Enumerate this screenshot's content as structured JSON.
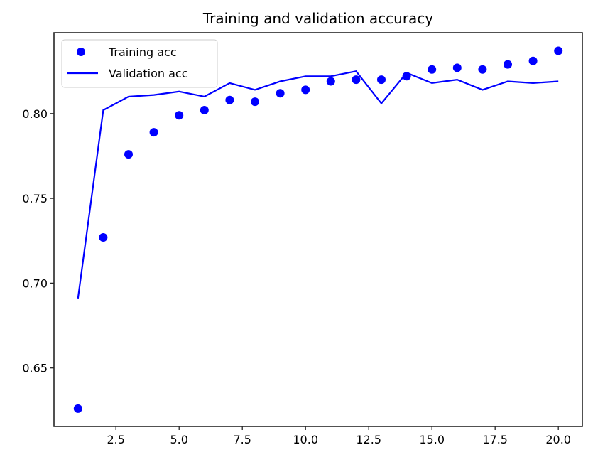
{
  "chart_data": {
    "type": "line",
    "title": "Training and validation accuracy",
    "xlabel": "",
    "ylabel": "",
    "x": [
      1,
      2,
      3,
      4,
      5,
      6,
      7,
      8,
      9,
      10,
      11,
      12,
      13,
      14,
      15,
      16,
      17,
      18,
      19,
      20
    ],
    "series": [
      {
        "name": "Training acc",
        "style": "markers",
        "color": "#0000ff",
        "values": [
          0.626,
          0.727,
          0.776,
          0.789,
          0.799,
          0.802,
          0.808,
          0.807,
          0.812,
          0.814,
          0.819,
          0.82,
          0.82,
          0.822,
          0.826,
          0.827,
          0.826,
          0.829,
          0.831,
          0.837
        ]
      },
      {
        "name": "Validation acc",
        "style": "line",
        "color": "#0000ff",
        "values": [
          0.691,
          0.802,
          0.81,
          0.811,
          0.813,
          0.81,
          0.818,
          0.814,
          0.819,
          0.822,
          0.822,
          0.825,
          0.806,
          0.824,
          0.818,
          0.82,
          0.814,
          0.819,
          0.818,
          0.819
        ]
      }
    ],
    "xticks": [
      2.5,
      5.0,
      7.5,
      10.0,
      12.5,
      15.0,
      17.5,
      20.0
    ],
    "xtick_labels": [
      "2.5",
      "5.0",
      "7.5",
      "10.0",
      "12.5",
      "15.0",
      "17.5",
      "20.0"
    ],
    "yticks": [
      0.65,
      0.7,
      0.75,
      0.8
    ],
    "ytick_labels": [
      "0.65",
      "0.70",
      "0.75",
      "0.80"
    ],
    "xlim": [
      0.05,
      20.95
    ],
    "ylim": [
      0.6155,
      0.8477
    ],
    "grid": false,
    "legend_position": "upper left"
  }
}
